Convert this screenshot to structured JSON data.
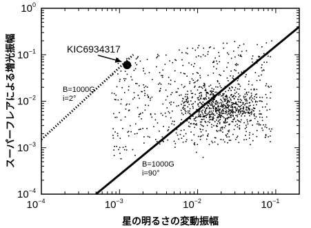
{
  "chart_data": {
    "type": "scatter",
    "title": "",
    "xlabel": "星の明るさの変動振幅",
    "ylabel": "スーパーフレアによる増光振幅",
    "xscale": "log",
    "yscale": "log",
    "xlim": [
      0.0001,
      0.2
    ],
    "ylim": [
      0.0001,
      1
    ],
    "x_ticks": [
      {
        "base": "10",
        "exp": "−4",
        "value": 0.0001
      },
      {
        "base": "10",
        "exp": "−3",
        "value": 0.001
      },
      {
        "base": "10",
        "exp": "−2",
        "value": 0.01
      },
      {
        "base": "10",
        "exp": "−1",
        "value": 0.1
      }
    ],
    "y_ticks": [
      {
        "base": "10",
        "exp": "−4",
        "value": 0.0001
      },
      {
        "base": "10",
        "exp": "−3",
        "value": 0.001
      },
      {
        "base": "10",
        "exp": "−2",
        "value": 0.01
      },
      {
        "base": "10",
        "exp": "−1",
        "value": 0.1
      },
      {
        "base": "10",
        "exp": "0",
        "value": 1
      }
    ],
    "grid": false,
    "reference_lines": [
      {
        "name": "B=1000G i=2°",
        "style": "dotted",
        "x": [
          0.0001,
          0.0015
        ],
        "y": [
          0.0015,
          0.1
        ]
      },
      {
        "name": "B=1000G i=90°",
        "style": "solid",
        "x": [
          0.0005,
          0.2
        ],
        "y": [
          0.0001,
          0.4
        ]
      }
    ],
    "highlight_point": {
      "label": "KIC6934317",
      "x": 0.00125,
      "y": 0.06
    },
    "annotations": [
      {
        "line1": "B=1000G",
        "line2": "i=2°"
      },
      {
        "line1": "B=1000G",
        "line2": "i=90°"
      }
    ],
    "scatter_cloud": {
      "n": 1200,
      "x_log_range": [
        -3.4,
        -1.05
      ],
      "y_log_range": [
        -3.4,
        -0.7
      ],
      "concentration_center": {
        "x": 0.02,
        "y": 0.007
      }
    }
  },
  "colors": {
    "points": "#000000",
    "axes": "#000000",
    "background": "#ffffff"
  }
}
